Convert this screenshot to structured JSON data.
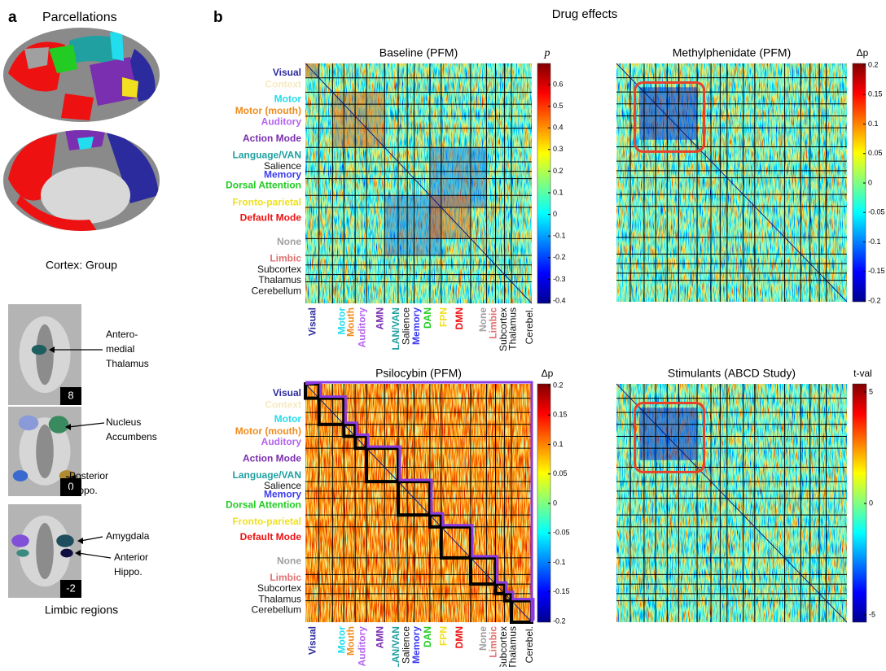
{
  "panel_a": {
    "letter": "a",
    "title": "Parcellations",
    "cortex_caption": "Cortex: Group",
    "slices": [
      {
        "number": 8,
        "annotations": [
          {
            "lines": [
              "Antero-",
              "medial",
              "Thalamus"
            ]
          }
        ]
      },
      {
        "number": 0,
        "annotations": [
          {
            "lines": [
              "Nucleus",
              "Accumbens"
            ]
          },
          {
            "lines": [
              "Posterior",
              "Hippo."
            ]
          }
        ]
      },
      {
        "number": -2,
        "annotations": [
          {
            "lines": [
              "Amygdala"
            ]
          },
          {
            "lines": [
              "Anterior",
              "Hippo."
            ]
          }
        ]
      }
    ],
    "limbic_caption": "Limbic regions"
  },
  "panel_b": {
    "letter": "b",
    "title": "Drug effects",
    "networks": [
      {
        "name": "Visual",
        "color": "#2b2b9e"
      },
      {
        "name": "Context",
        "color": "#f6e9c0"
      },
      {
        "name": "Motor",
        "color": "#22ddee"
      },
      {
        "name": "Motor (mouth)",
        "color": "#f08c1e"
      },
      {
        "name": "Auditory",
        "color": "#b464f0"
      },
      {
        "name": "Action Mode",
        "color": "#7a2eb0"
      },
      {
        "name": "Language/VAN",
        "color": "#20a0a0"
      },
      {
        "name": "Salience",
        "color": "#111111"
      },
      {
        "name": "Memory",
        "color": "#3c3cf0"
      },
      {
        "name": "Dorsal Attention",
        "color": "#22cc22"
      },
      {
        "name": "Fronto-parietal",
        "color": "#f0e020"
      },
      {
        "name": "Default Mode",
        "color": "#ee1111"
      },
      {
        "name": "None",
        "color": "#a0a0a0"
      },
      {
        "name": "Limbic",
        "color": "#e07070"
      },
      {
        "name": "Subcortex",
        "color": "#111111"
      },
      {
        "name": "Thalamus",
        "color": "#111111"
      },
      {
        "name": "Cerebellum",
        "color": "#111111"
      }
    ],
    "network_abbreviations": [
      {
        "name": "Visual",
        "color": "#2b2b9e"
      },
      {
        "name": "Motor",
        "color": "#22ddee"
      },
      {
        "name": "Mouth",
        "color": "#f08c1e"
      },
      {
        "name": "Auditory",
        "color": "#b464f0"
      },
      {
        "name": "AMN",
        "color": "#7a2eb0"
      },
      {
        "name": "LAN/VAN",
        "color": "#20a0a0"
      },
      {
        "name": "Salience",
        "color": "#111111"
      },
      {
        "name": "Memory",
        "color": "#3c3cf0"
      },
      {
        "name": "DAN",
        "color": "#22cc22"
      },
      {
        "name": "FPN",
        "color": "#f0e020"
      },
      {
        "name": "DMN",
        "color": "#ee1111"
      },
      {
        "name": "None",
        "color": "#a0a0a0"
      },
      {
        "name": "Limbic",
        "color": "#e07070"
      },
      {
        "name": "Subcortex",
        "color": "#111111"
      },
      {
        "name": "Thalamus",
        "color": "#111111"
      },
      {
        "name": "Cerebel.",
        "color": "#111111"
      }
    ],
    "matrices": [
      {
        "title": "Baseline (PFM)",
        "colorbar_label": "p",
        "colorbar_ticks": [
          0.6,
          0.5,
          0.4,
          0.3,
          0.2,
          0.1,
          0,
          -0.1,
          -0.2,
          -0.3,
          -0.4
        ]
      },
      {
        "title": "Methylphenidate (PFM)",
        "colorbar_label": "Δp",
        "colorbar_ticks": [
          0.2,
          0.15,
          0.1,
          0.05,
          0,
          -0.05,
          -0.1,
          -0.15,
          -0.2
        ]
      },
      {
        "title": "Psilocybin (PFM)",
        "colorbar_label": "Δp",
        "colorbar_ticks": [
          0.2,
          0.15,
          0.1,
          0.05,
          0,
          -0.05,
          -0.1,
          -0.15,
          -0.2
        ]
      },
      {
        "title": "Stimulants (ABCD Study)",
        "colorbar_label": "t-val",
        "colorbar_ticks": [
          5,
          0,
          -5
        ]
      }
    ]
  }
}
